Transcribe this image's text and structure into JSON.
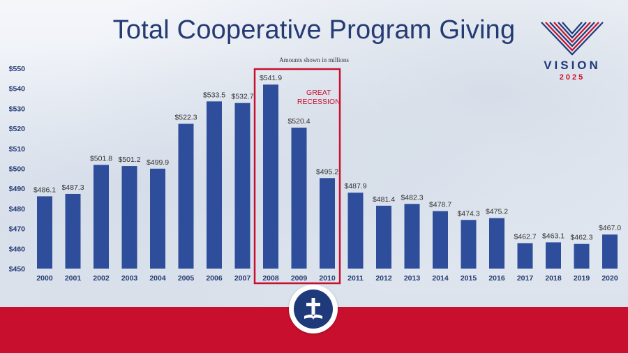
{
  "page": {
    "title": "Total Cooperative Program Giving",
    "logo_word": "VISION",
    "logo_year": "2025",
    "emblem_icon": "cross-and-bible-icon"
  },
  "colors": {
    "bar": "#2e4d9b",
    "highlight": "#c8102e",
    "title": "#243b73",
    "footer": "#c8102e"
  },
  "chart_data": {
    "type": "bar",
    "subtitle": "Amounts shown in millions",
    "categories": [
      "2000",
      "2001",
      "2002",
      "2003",
      "2004",
      "2005",
      "2006",
      "2007",
      "2008",
      "2009",
      "2010",
      "2011",
      "2012",
      "2013",
      "2014",
      "2015",
      "2016",
      "2017",
      "2018",
      "2019",
      "2020"
    ],
    "values": [
      486.1,
      487.3,
      501.8,
      501.2,
      499.9,
      522.3,
      533.5,
      532.7,
      541.9,
      520.4,
      495.2,
      487.9,
      481.4,
      482.3,
      478.7,
      474.3,
      475.2,
      462.7,
      463.1,
      462.3,
      467.0
    ],
    "value_labels": [
      "$486.1",
      "$487.3",
      "$501.8",
      "$501.2",
      "$499.9",
      "$522.3",
      "$533.5",
      "$532.7",
      "$541.9",
      "$520.4",
      "$495.2",
      "$487.9",
      "$481.4",
      "$482.3",
      "$478.7",
      "$474.3",
      "$475.2",
      "$462.7",
      "$463.1",
      "$462.3",
      "$467.0"
    ],
    "y_ticks": [
      450,
      460,
      470,
      480,
      490,
      500,
      510,
      520,
      530,
      540,
      550
    ],
    "y_tick_labels": [
      "$450",
      "$460",
      "$470",
      "$480",
      "$490",
      "$500",
      "$510",
      "$520",
      "$530",
      "$540",
      "$550"
    ],
    "ylim": [
      450,
      550
    ],
    "grid": false,
    "highlight": {
      "from": "2008",
      "to": "2010",
      "label_lines": [
        "GREAT",
        "RECESSION"
      ]
    }
  }
}
